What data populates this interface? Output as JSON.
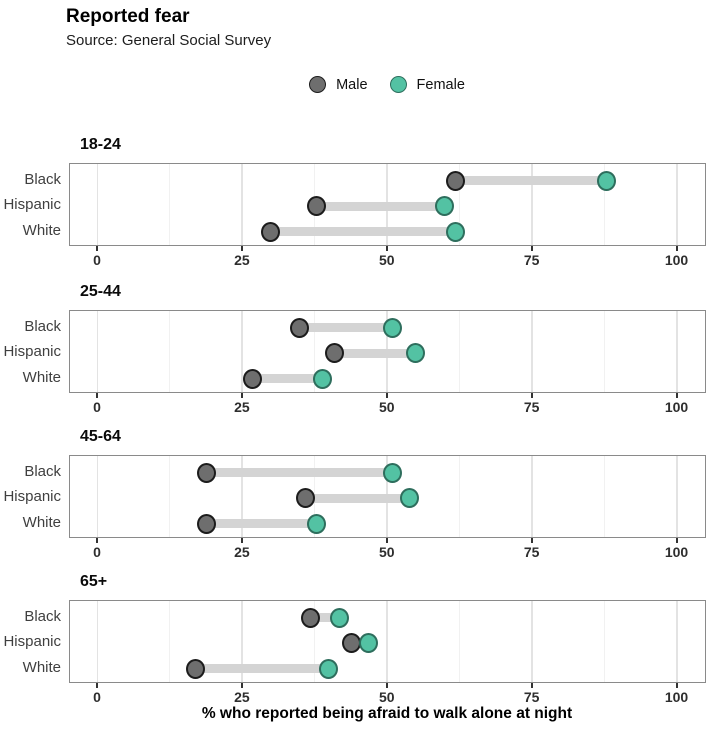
{
  "chart_data": {
    "type": "dumbbell",
    "title": "Reported fear",
    "subtitle": "Source: General Social Survey",
    "xlabel": "% who reported being afraid to walk alone at night",
    "x_ticks": [
      0,
      25,
      50,
      75,
      100
    ],
    "x_minor_ticks": [
      12.5,
      37.5,
      62.5,
      87.5
    ],
    "xlim": [
      -5,
      105
    ],
    "grid": "vertical-only",
    "legend": {
      "position": "top-center",
      "items": [
        {
          "label": "Male",
          "series": "male"
        },
        {
          "label": "Female",
          "series": "female"
        }
      ]
    },
    "colors": {
      "male_fill": "#6e6e6e",
      "male_stroke": "#1c1c1c",
      "female_fill": "#53c2a3",
      "female_stroke": "#2e6e5d",
      "connector": "#d4d4d4",
      "grid_major": "#e3e3e3",
      "grid_minor": "#f1f1f1",
      "panel_border": "#8a8a8a"
    },
    "panels": [
      {
        "age_group": "18-24",
        "rows": [
          {
            "group": "Black",
            "male": 62,
            "female": 88
          },
          {
            "group": "Hispanic",
            "male": 38,
            "female": 60
          },
          {
            "group": "White",
            "male": 30,
            "female": 62
          }
        ]
      },
      {
        "age_group": "25-44",
        "rows": [
          {
            "group": "Black",
            "male": 35,
            "female": 51
          },
          {
            "group": "Hispanic",
            "male": 41,
            "female": 55
          },
          {
            "group": "White",
            "male": 27,
            "female": 39
          }
        ]
      },
      {
        "age_group": "45-64",
        "rows": [
          {
            "group": "Black",
            "male": 19,
            "female": 51
          },
          {
            "group": "Hispanic",
            "male": 36,
            "female": 54
          },
          {
            "group": "White",
            "male": 19,
            "female": 38
          }
        ]
      },
      {
        "age_group": "65+",
        "rows": [
          {
            "group": "Black",
            "male": 37,
            "female": 42
          },
          {
            "group": "Hispanic",
            "male": 44,
            "female": 47
          },
          {
            "group": "White",
            "male": 17,
            "female": 40
          }
        ]
      }
    ]
  }
}
